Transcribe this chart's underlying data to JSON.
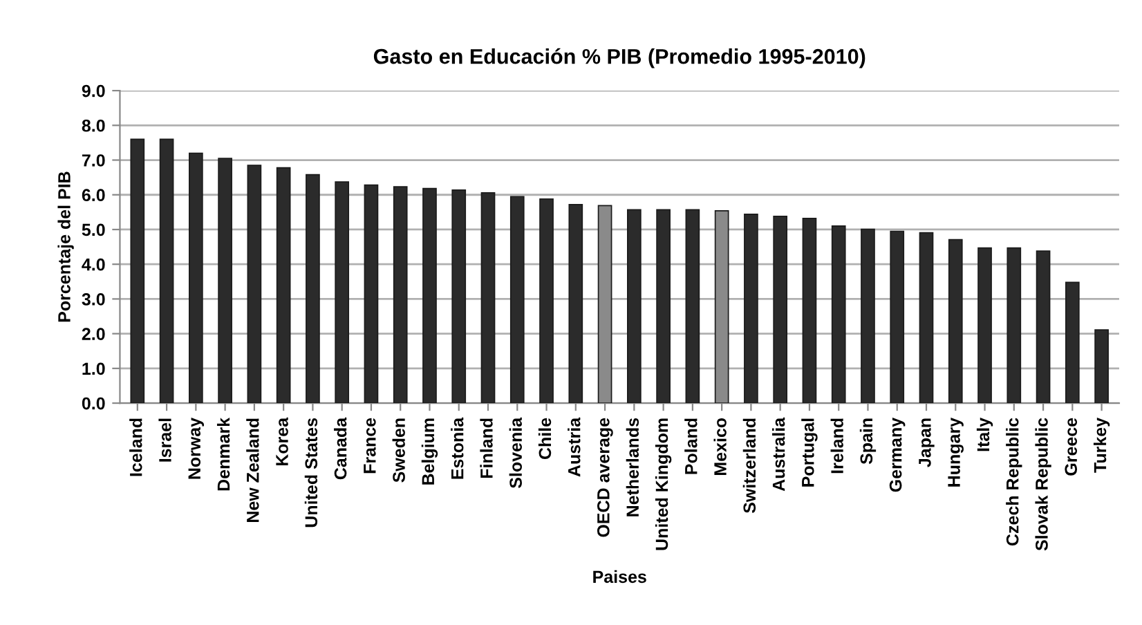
{
  "chart_data": {
    "type": "bar",
    "title": "Gasto en Educación % PIB (Promedio 1995-2010)",
    "xlabel": "Paises",
    "ylabel": "Porcentaje del PIB",
    "categories": [
      "Iceland",
      "Israel",
      "Norway",
      "Denmark",
      "New Zealand",
      "Korea",
      "United States",
      "Canada",
      "France",
      "Sweden",
      "Belgium",
      "Estonia",
      "Finland",
      "Slovenia",
      "Chile",
      "Austria",
      "OECD average",
      "Netherlands",
      "United Kingdom",
      "Poland",
      "Mexico",
      "Switzerland",
      "Australia",
      "Portugal",
      "Ireland",
      "Spain",
      "Germany",
      "Japan",
      "Hungary",
      "Italy",
      "Czech Republic",
      "Slovak Republic",
      "Greece",
      "Turkey"
    ],
    "values": [
      7.6,
      7.6,
      7.2,
      7.05,
      6.85,
      6.78,
      6.58,
      6.37,
      6.28,
      6.23,
      6.18,
      6.14,
      6.06,
      5.95,
      5.88,
      5.72,
      5.69,
      5.57,
      5.57,
      5.57,
      5.54,
      5.44,
      5.38,
      5.32,
      5.1,
      5.01,
      4.95,
      4.91,
      4.71,
      4.47,
      4.47,
      4.38,
      3.48,
      2.11
    ],
    "colors": [
      "#2b2b2b",
      "#2b2b2b",
      "#2b2b2b",
      "#2b2b2b",
      "#2b2b2b",
      "#2b2b2b",
      "#2b2b2b",
      "#2b2b2b",
      "#2b2b2b",
      "#2b2b2b",
      "#2b2b2b",
      "#2b2b2b",
      "#2b2b2b",
      "#2b2b2b",
      "#2b2b2b",
      "#2b2b2b",
      "#8a8a8a",
      "#2b2b2b",
      "#2b2b2b",
      "#2b2b2b",
      "#8a8a8a",
      "#2b2b2b",
      "#2b2b2b",
      "#2b2b2b",
      "#2b2b2b",
      "#2b2b2b",
      "#2b2b2b",
      "#2b2b2b",
      "#2b2b2b",
      "#2b2b2b",
      "#2b2b2b",
      "#2b2b2b",
      "#2b2b2b",
      "#2b2b2b"
    ],
    "ylim": [
      0,
      9
    ],
    "yticks": [
      {
        "value": 0,
        "label": "0.0"
      },
      {
        "value": 1,
        "label": "1.0"
      },
      {
        "value": 2,
        "label": "2.0"
      },
      {
        "value": 3,
        "label": "3.0"
      },
      {
        "value": 4,
        "label": "4.0"
      },
      {
        "value": 5,
        "label": "5.0"
      },
      {
        "value": 6,
        "label": "6.0"
      },
      {
        "value": 7,
        "label": "7.0"
      },
      {
        "value": 8,
        "label": "8.0"
      },
      {
        "value": 9,
        "label": "9.0"
      }
    ],
    "grid": "y"
  }
}
